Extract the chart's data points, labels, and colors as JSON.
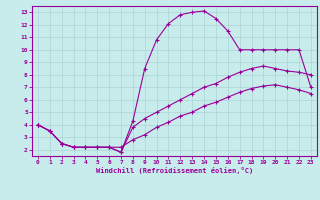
{
  "background_color": "#c8ecec",
  "grid_color": "#b0d8d8",
  "line_color": "#990099",
  "xlabel": "Windchill (Refroidissement éolien,°C)",
  "xlim": [
    -0.5,
    23.5
  ],
  "ylim": [
    1.5,
    13.5
  ],
  "xticks": [
    0,
    1,
    2,
    3,
    4,
    5,
    6,
    7,
    8,
    9,
    10,
    11,
    12,
    13,
    14,
    15,
    16,
    17,
    18,
    19,
    20,
    21,
    22,
    23
  ],
  "yticks": [
    2,
    3,
    4,
    5,
    6,
    7,
    8,
    9,
    10,
    11,
    12,
    13
  ],
  "curve1_x": [
    0,
    1,
    2,
    3,
    4,
    5,
    6,
    7,
    8,
    9,
    10,
    11,
    12,
    13,
    14,
    15,
    16,
    17,
    18,
    19,
    20,
    21,
    22,
    23
  ],
  "curve1_y": [
    4.0,
    3.5,
    2.5,
    2.2,
    2.2,
    2.2,
    2.2,
    1.8,
    4.3,
    8.5,
    10.8,
    12.1,
    12.8,
    13.0,
    13.1,
    12.5,
    11.5,
    10.0,
    10.0,
    10.0,
    10.0,
    10.0,
    10.0,
    7.0
  ],
  "curve2_x": [
    0,
    1,
    2,
    3,
    4,
    5,
    6,
    7,
    8,
    9,
    10,
    11,
    12,
    13,
    14,
    15,
    16,
    17,
    18,
    19,
    20,
    21,
    22,
    23
  ],
  "curve2_y": [
    4.0,
    3.5,
    2.5,
    2.2,
    2.2,
    2.2,
    2.2,
    1.8,
    3.8,
    4.5,
    5.0,
    5.5,
    6.0,
    6.5,
    7.0,
    7.3,
    7.8,
    8.2,
    8.5,
    8.7,
    8.5,
    8.3,
    8.2,
    8.0
  ],
  "curve3_x": [
    0,
    1,
    2,
    3,
    4,
    5,
    6,
    7,
    8,
    9,
    10,
    11,
    12,
    13,
    14,
    15,
    16,
    17,
    18,
    19,
    20,
    21,
    22,
    23
  ],
  "curve3_y": [
    4.0,
    3.5,
    2.5,
    2.2,
    2.2,
    2.2,
    2.2,
    2.2,
    2.8,
    3.2,
    3.8,
    4.2,
    4.7,
    5.0,
    5.5,
    5.8,
    6.2,
    6.6,
    6.9,
    7.1,
    7.2,
    7.0,
    6.8,
    6.5
  ]
}
